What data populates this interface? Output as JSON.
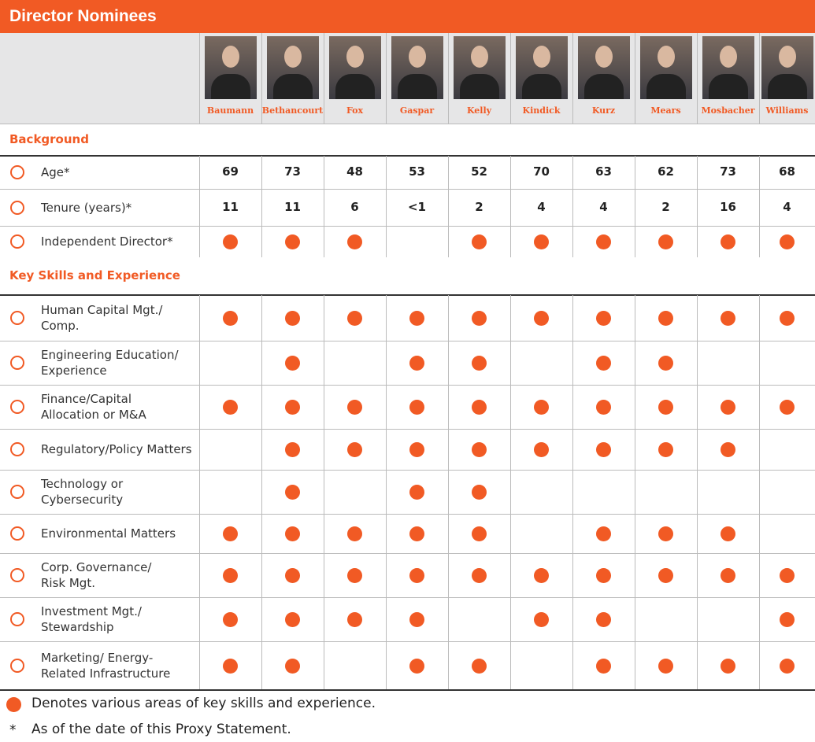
{
  "header": {
    "title": "Director Nominees"
  },
  "nominees": [
    "Baumann",
    "Bethancourt",
    "Fox",
    "Gaspar",
    "Kelly",
    "Kindick",
    "Kurz",
    "Mears",
    "Mosbacher",
    "Williams"
  ],
  "sections": [
    {
      "title": "Background",
      "rows": [
        {
          "label": [
            "Age*"
          ],
          "values": [
            69,
            73,
            48,
            53,
            52,
            70,
            63,
            62,
            73,
            68
          ]
        },
        {
          "label": [
            "Tenure (years)*"
          ],
          "values": [
            11,
            11,
            6,
            "<1",
            2,
            4,
            4,
            2,
            16,
            4
          ]
        },
        {
          "label": [
            "Independent Director*"
          ],
          "checks": [
            true,
            true,
            true,
            false,
            true,
            true,
            true,
            true,
            true,
            true
          ]
        }
      ]
    },
    {
      "title": "Key Skills and Experience",
      "rows": [
        {
          "label": [
            "Human Capital Mgt./",
            "Comp."
          ],
          "checks": [
            true,
            true,
            true,
            true,
            true,
            true,
            true,
            true,
            true,
            true
          ]
        },
        {
          "label": [
            "Engineering Education/",
            "Experience"
          ],
          "checks": [
            false,
            true,
            false,
            true,
            true,
            false,
            true,
            true,
            false,
            false
          ]
        },
        {
          "label": [
            "Finance/Capital",
            "Allocation or M&A"
          ],
          "checks": [
            true,
            true,
            true,
            true,
            true,
            true,
            true,
            true,
            true,
            true
          ]
        },
        {
          "label": [
            "Regulatory/Policy Matters"
          ],
          "checks": [
            false,
            true,
            true,
            true,
            true,
            true,
            true,
            true,
            true,
            false
          ]
        },
        {
          "label": [
            "Technology or",
            "Cybersecurity"
          ],
          "checks": [
            false,
            true,
            false,
            true,
            true,
            false,
            false,
            false,
            false,
            false
          ]
        },
        {
          "label": [
            "Environmental Matters"
          ],
          "checks": [
            true,
            true,
            true,
            true,
            true,
            false,
            true,
            true,
            true,
            false
          ]
        },
        {
          "label": [
            "Corp. Governance/",
            "Risk Mgt."
          ],
          "checks": [
            true,
            true,
            true,
            true,
            true,
            true,
            true,
            true,
            true,
            true
          ]
        },
        {
          "label": [
            "Investment Mgt./",
            "Stewardship"
          ],
          "checks": [
            true,
            true,
            true,
            true,
            false,
            true,
            true,
            false,
            false,
            true
          ]
        },
        {
          "label": [
            "Marketing/ Energy-",
            "Related Infrastructure"
          ],
          "checks": [
            true,
            true,
            false,
            true,
            true,
            false,
            true,
            true,
            true,
            true
          ]
        }
      ]
    }
  ],
  "footer": {
    "legend": "Denotes various areas of key skills and experience.",
    "note_symbol": "*",
    "note": "As of the date of this Proxy Statement."
  }
}
